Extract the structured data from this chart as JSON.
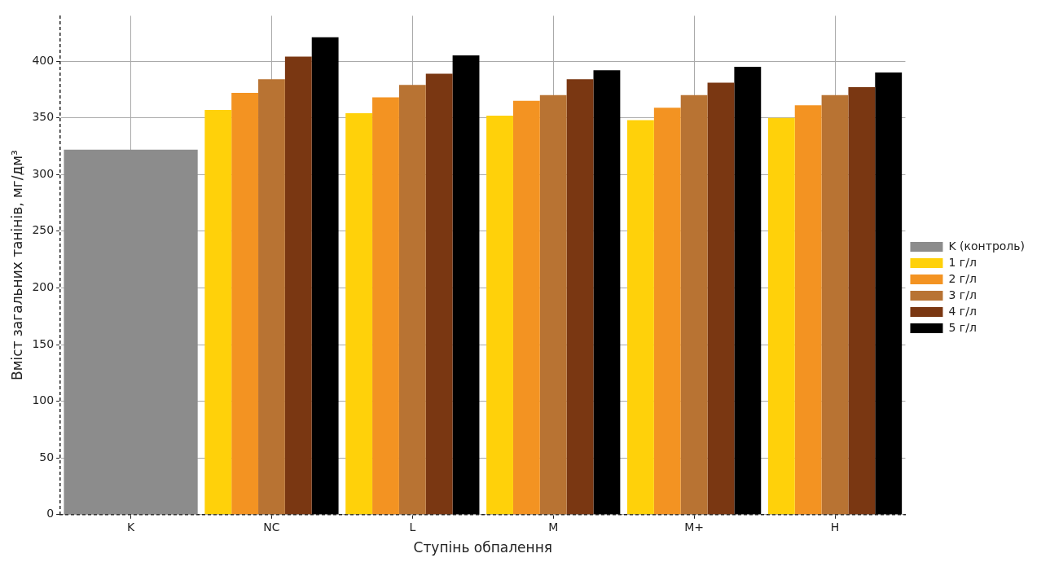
{
  "chart_data": {
    "type": "bar",
    "xlabel": "Ступінь обпалення",
    "ylabel": "Вміст загальних танінів, мг/дм³",
    "categories": [
      "K",
      "NC",
      "L",
      "M",
      "M+",
      "H"
    ],
    "series": [
      {
        "name": "K (контроль)",
        "color": "#8c8c8c",
        "values": [
          322,
          null,
          null,
          null,
          null,
          null
        ]
      },
      {
        "name": "1 г/л",
        "color": "#ffd10a",
        "values": [
          null,
          357,
          354,
          352,
          348,
          350
        ]
      },
      {
        "name": "2 г/л",
        "color": "#f39322",
        "values": [
          null,
          372,
          368,
          365,
          359,
          361
        ]
      },
      {
        "name": "3 г/л",
        "color": "#b87333",
        "values": [
          null,
          384,
          379,
          370,
          370,
          370
        ]
      },
      {
        "name": "4 г/л",
        "color": "#7a3712",
        "values": [
          null,
          404,
          389,
          384,
          381,
          377
        ]
      },
      {
        "name": "5 г/л",
        "color": "#000000",
        "values": [
          null,
          421,
          405,
          392,
          395,
          390
        ]
      }
    ],
    "ylim": [
      0,
      440
    ],
    "yticks": [
      0,
      50,
      100,
      150,
      200,
      250,
      300,
      350,
      400
    ],
    "grid": true,
    "legend": "right"
  }
}
